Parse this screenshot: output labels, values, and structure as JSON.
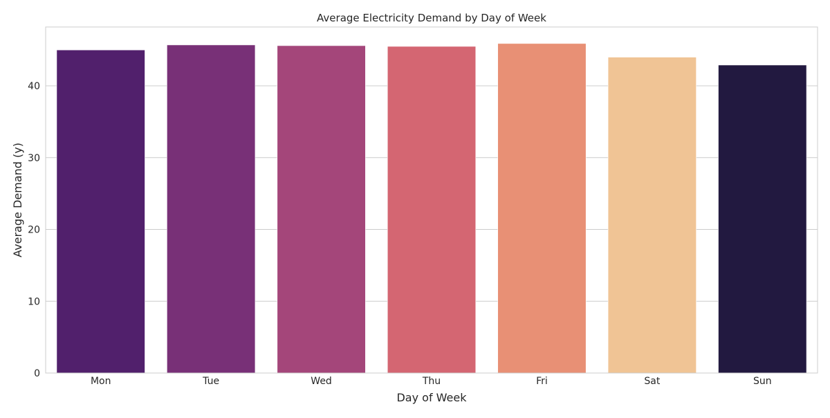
{
  "chart_data": {
    "type": "bar",
    "title": "Average Electricity Demand by Day of Week",
    "xlabel": "Day of Week",
    "ylabel": "Average Demand (y)",
    "categories": [
      "Mon",
      "Tue",
      "Wed",
      "Thu",
      "Fri",
      "Sat",
      "Sun"
    ],
    "values": [
      45.0,
      45.7,
      45.6,
      45.5,
      45.9,
      44.0,
      42.9
    ],
    "colors": [
      "#51206c",
      "#783077",
      "#a4467a",
      "#d46672",
      "#e89075",
      "#f0c495",
      "#221940"
    ],
    "yticks": [
      0,
      10,
      20,
      30,
      40
    ],
    "ylim": [
      0,
      48.2
    ],
    "grid": "horizontal",
    "legend": "none"
  }
}
